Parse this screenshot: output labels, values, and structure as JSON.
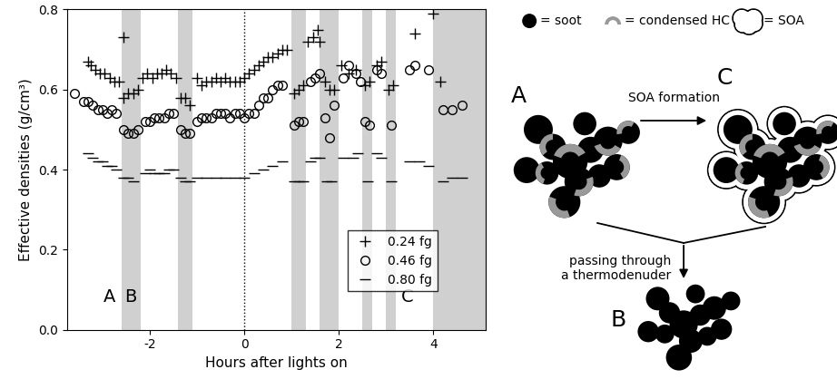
{
  "chart_data": {
    "type": "scatter",
    "xlabel": "Hours after lights on",
    "ylabel": "Effective densities (g/cm³)",
    "xlim": [
      -3.75,
      5.1
    ],
    "ylim": [
      0.0,
      0.8
    ],
    "xticks": [
      -2,
      0,
      2,
      4
    ],
    "yticks": [
      {
        "value": 0.0,
        "label": "0.0"
      },
      {
        "value": 0.2,
        "label": "0.2"
      },
      {
        "value": 0.4,
        "label": "0.4"
      },
      {
        "value": 0.6,
        "label": "0.6"
      },
      {
        "value": 0.8,
        "label": "0.8"
      }
    ],
    "grid": false,
    "legend": "lower right",
    "shaded_intervals": [
      [
        -2.6,
        -2.2
      ],
      [
        -1.4,
        -1.1
      ],
      [
        1.0,
        1.3
      ],
      [
        1.6,
        2.0
      ],
      [
        2.5,
        2.7
      ],
      [
        3.0,
        3.2
      ],
      [
        4.0,
        5.1
      ]
    ],
    "vlines": [
      0
    ],
    "annotations": [
      {
        "text": "A",
        "x": -2.85,
        "y": 0.06
      },
      {
        "text": "B",
        "x": -2.4,
        "y": 0.06
      },
      {
        "text": "C",
        "x": 3.45,
        "y": 0.06
      }
    ],
    "series": [
      {
        "name": "0.24 fg",
        "marker": "plus",
        "color": "#000000",
        "x": [
          -3.3,
          -3.25,
          -3.15,
          -3.05,
          -2.95,
          -2.85,
          -2.75,
          -2.65,
          -2.55,
          -2.55,
          -2.45,
          -2.35,
          -2.25,
          -2.15,
          -2.05,
          -1.95,
          -1.85,
          -1.75,
          -1.65,
          -1.55,
          -1.45,
          -1.35,
          -1.25,
          -1.15,
          -1.0,
          -0.9,
          -0.8,
          -0.7,
          -0.6,
          -0.5,
          -0.4,
          -0.3,
          -0.2,
          -0.1,
          0.0,
          0.1,
          0.2,
          0.3,
          0.4,
          0.5,
          0.6,
          0.7,
          0.8,
          0.9,
          1.05,
          1.15,
          1.25,
          1.35,
          1.45,
          1.55,
          1.6,
          1.7,
          1.8,
          1.9,
          2.05,
          2.2,
          2.35,
          2.55,
          2.65,
          2.8,
          2.9,
          3.05,
          3.15,
          3.6,
          4.0,
          4.15
        ],
        "values": [
          0.67,
          0.66,
          0.65,
          0.64,
          0.64,
          0.63,
          0.62,
          0.62,
          0.73,
          0.58,
          0.59,
          0.59,
          0.6,
          0.63,
          0.64,
          0.63,
          0.64,
          0.64,
          0.65,
          0.64,
          0.63,
          0.58,
          0.58,
          0.56,
          0.63,
          0.61,
          0.62,
          0.62,
          0.63,
          0.62,
          0.63,
          0.62,
          0.62,
          0.62,
          0.63,
          0.64,
          0.65,
          0.66,
          0.67,
          0.68,
          0.68,
          0.69,
          0.7,
          0.7,
          0.59,
          0.6,
          0.61,
          0.72,
          0.73,
          0.75,
          0.72,
          0.62,
          0.6,
          0.6,
          0.66,
          0.64,
          0.65,
          0.61,
          0.62,
          0.66,
          0.67,
          0.6,
          0.61,
          0.74,
          0.79,
          0.62
        ]
      },
      {
        "name": "0.46 fg",
        "marker": "circle",
        "color": "#000000",
        "x": [
          -3.6,
          -3.4,
          -3.3,
          -3.2,
          -3.1,
          -3.0,
          -2.9,
          -2.8,
          -2.7,
          -2.55,
          -2.45,
          -2.35,
          -2.25,
          -2.1,
          -2.0,
          -1.9,
          -1.8,
          -1.7,
          -1.6,
          -1.5,
          -1.35,
          -1.25,
          -1.15,
          -1.0,
          -0.9,
          -0.8,
          -0.7,
          -0.6,
          -0.5,
          -0.4,
          -0.3,
          -0.2,
          -0.1,
          0.0,
          0.1,
          0.2,
          0.3,
          0.4,
          0.5,
          0.6,
          0.7,
          0.8,
          1.05,
          1.15,
          1.25,
          1.4,
          1.5,
          1.6,
          1.7,
          1.8,
          1.9,
          2.1,
          2.2,
          2.35,
          2.45,
          2.55,
          2.65,
          2.8,
          2.9,
          3.1,
          3.5,
          3.6,
          3.9,
          4.2,
          4.4,
          4.6
        ],
        "values": [
          0.59,
          0.57,
          0.57,
          0.56,
          0.55,
          0.55,
          0.54,
          0.55,
          0.54,
          0.5,
          0.49,
          0.49,
          0.5,
          0.52,
          0.52,
          0.53,
          0.53,
          0.53,
          0.54,
          0.54,
          0.5,
          0.49,
          0.49,
          0.52,
          0.53,
          0.53,
          0.53,
          0.54,
          0.54,
          0.54,
          0.53,
          0.54,
          0.54,
          0.53,
          0.54,
          0.54,
          0.56,
          0.58,
          0.58,
          0.6,
          0.61,
          0.61,
          0.51,
          0.52,
          0.52,
          0.62,
          0.63,
          0.64,
          0.53,
          0.48,
          0.56,
          0.63,
          0.66,
          0.64,
          0.62,
          0.52,
          0.51,
          0.65,
          0.64,
          0.51,
          0.65,
          0.66,
          0.65,
          0.55,
          0.55,
          0.56
        ]
      },
      {
        "name": "0.80 fg",
        "marker": "hline",
        "color": "#000000",
        "x": [
          -3.3,
          -3.2,
          -3.1,
          -3.0,
          -2.9,
          -2.8,
          -2.7,
          -2.55,
          -2.45,
          -2.35,
          -2.1,
          -2.0,
          -1.9,
          -1.8,
          -1.7,
          -1.6,
          -1.5,
          -1.35,
          -1.25,
          -1.15,
          -1.0,
          -0.8,
          -0.6,
          -0.4,
          -0.2,
          0.0,
          0.2,
          0.4,
          0.6,
          0.8,
          1.05,
          1.15,
          1.25,
          1.4,
          1.5,
          1.6,
          1.75,
          1.85,
          2.1,
          2.3,
          2.4,
          2.6,
          2.8,
          2.9,
          3.1,
          3.5,
          3.7,
          3.9,
          4.2,
          4.4,
          4.6
        ],
        "values": [
          0.44,
          0.43,
          0.42,
          0.42,
          0.41,
          0.41,
          0.4,
          0.38,
          0.38,
          0.37,
          0.39,
          0.4,
          0.39,
          0.39,
          0.39,
          0.4,
          0.4,
          0.38,
          0.37,
          0.37,
          0.38,
          0.38,
          0.38,
          0.38,
          0.38,
          0.38,
          0.39,
          0.4,
          0.41,
          0.42,
          0.37,
          0.37,
          0.37,
          0.42,
          0.43,
          0.43,
          0.37,
          0.37,
          0.43,
          0.43,
          0.44,
          0.37,
          0.44,
          0.43,
          0.37,
          0.42,
          0.42,
          0.41,
          0.37,
          0.38,
          0.38
        ]
      }
    ]
  },
  "diagram": {
    "legend": [
      {
        "label": "= soot"
      },
      {
        "label": "= condensed HC"
      },
      {
        "label": "= SOA"
      }
    ],
    "nodes": [
      {
        "label": "A"
      },
      {
        "label": "B"
      },
      {
        "label": "C"
      }
    ],
    "edges": [
      {
        "from": "A",
        "to": "C",
        "label": "SOA formation"
      },
      {
        "from": "A",
        "to": "B",
        "label": "passing through\na thermodenuder"
      }
    ]
  }
}
